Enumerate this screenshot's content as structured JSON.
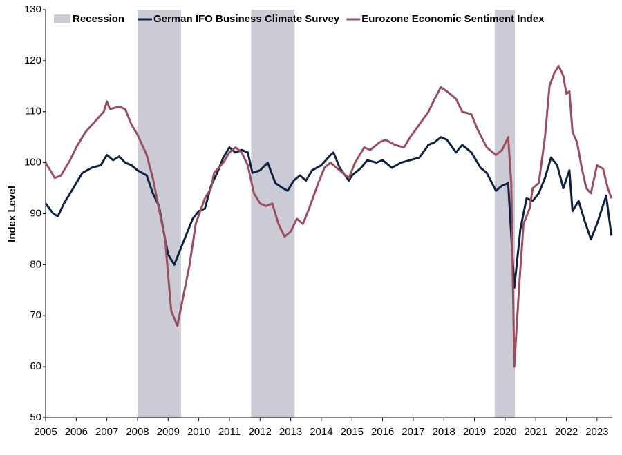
{
  "chart_data": {
    "type": "line",
    "y_label": "Index Level",
    "xlim": [
      2005,
      2023.5
    ],
    "ylim": [
      50,
      130
    ],
    "xticks": [
      2005,
      2006,
      2007,
      2008,
      2009,
      2010,
      2011,
      2012,
      2013,
      2014,
      2015,
      2016,
      2017,
      2018,
      2019,
      2020,
      2021,
      2022,
      2023
    ],
    "yticks": [
      50,
      60,
      70,
      80,
      90,
      100,
      110,
      120,
      130
    ],
    "recession": {
      "name": "Recession",
      "color": "#cbcbd5",
      "spans": [
        [
          2008.0,
          2009.42
        ],
        [
          2011.71,
          2013.13
        ],
        [
          2019.66,
          2020.32
        ]
      ]
    },
    "series": [
      {
        "name": "German IFO Business Climate Survey",
        "color": "#0d2240",
        "x": [
          2005.0,
          2005.25,
          2005.4,
          2005.6,
          2005.9,
          2006.2,
          2006.5,
          2006.8,
          2007.0,
          2007.2,
          2007.4,
          2007.6,
          2007.8,
          2008.0,
          2008.3,
          2008.5,
          2008.7,
          2008.9,
          2009.0,
          2009.2,
          2009.4,
          2009.6,
          2009.8,
          2010.0,
          2010.2,
          2010.4,
          2010.6,
          2010.8,
          2011.0,
          2011.2,
          2011.4,
          2011.6,
          2011.75,
          2012.0,
          2012.25,
          2012.5,
          2012.75,
          2012.9,
          2013.1,
          2013.3,
          2013.5,
          2013.7,
          2014.0,
          2014.3,
          2014.4,
          2014.6,
          2014.9,
          2015.0,
          2015.3,
          2015.5,
          2015.8,
          2016.0,
          2016.3,
          2016.6,
          2016.9,
          2017.2,
          2017.5,
          2017.7,
          2017.9,
          2018.1,
          2018.4,
          2018.6,
          2018.9,
          2019.2,
          2019.4,
          2019.7,
          2019.9,
          2020.1,
          2020.3,
          2020.5,
          2020.7,
          2020.9,
          2021.1,
          2021.3,
          2021.5,
          2021.7,
          2021.9,
          2022.1,
          2022.2,
          2022.4,
          2022.6,
          2022.8,
          2023.0,
          2023.3,
          2023.47
        ],
        "values": [
          92,
          90,
          89.5,
          92,
          95,
          98,
          99,
          99.5,
          101.5,
          100.5,
          101.2,
          100,
          99.5,
          98.5,
          97.5,
          94,
          91.5,
          85,
          82,
          80,
          83,
          86,
          89,
          90.5,
          91,
          95.5,
          98,
          101,
          103,
          102,
          102.5,
          102,
          98,
          98.5,
          100,
          96,
          95,
          94.5,
          96.5,
          97.5,
          96.5,
          98.5,
          99.5,
          101.5,
          102,
          99,
          96.5,
          97.5,
          99,
          100.5,
          100,
          100.5,
          99,
          100,
          100.5,
          101,
          103.5,
          104,
          105,
          104.5,
          102,
          103.5,
          102,
          99,
          98,
          94.5,
          95.5,
          96,
          75.5,
          87,
          93,
          92.5,
          94,
          97,
          101,
          99.5,
          95,
          98.5,
          90.5,
          92.5,
          88.5,
          85,
          88,
          93.5,
          85.7
        ]
      },
      {
        "name": "Eurozone Economic Sentiment Index",
        "color": "#9c4d5e",
        "x": [
          2005.0,
          2005.3,
          2005.5,
          2005.8,
          2006.0,
          2006.3,
          2006.6,
          2006.9,
          2007.0,
          2007.1,
          2007.4,
          2007.6,
          2007.8,
          2008.0,
          2008.3,
          2008.5,
          2008.7,
          2008.9,
          2009.1,
          2009.3,
          2009.5,
          2009.7,
          2009.9,
          2010.2,
          2010.4,
          2010.5,
          2010.8,
          2011.0,
          2011.2,
          2011.4,
          2011.6,
          2011.8,
          2012.0,
          2012.2,
          2012.4,
          2012.6,
          2012.8,
          2013.0,
          2013.2,
          2013.4,
          2013.6,
          2013.9,
          2014.1,
          2014.3,
          2014.6,
          2014.9,
          2015.1,
          2015.4,
          2015.6,
          2015.9,
          2016.1,
          2016.4,
          2016.7,
          2016.9,
          2017.2,
          2017.5,
          2017.7,
          2017.9,
          2018.1,
          2018.4,
          2018.6,
          2018.9,
          2019.1,
          2019.4,
          2019.7,
          2019.9,
          2020.1,
          2020.2,
          2020.3,
          2020.45,
          2020.6,
          2020.8,
          2020.9,
          2021.1,
          2021.3,
          2021.45,
          2021.6,
          2021.75,
          2021.9,
          2022.0,
          2022.1,
          2022.2,
          2022.35,
          2022.5,
          2022.65,
          2022.8,
          2023.0,
          2023.2,
          2023.35,
          2023.47
        ],
        "values": [
          100,
          97,
          97.5,
          100.5,
          103,
          106,
          108,
          110,
          112,
          110.5,
          111,
          110.5,
          107.5,
          105.5,
          101.5,
          97,
          91,
          85,
          71,
          68,
          74,
          80,
          88,
          93,
          95,
          98,
          100,
          102,
          103,
          102,
          99.5,
          94,
          92,
          91.5,
          92,
          88,
          85.5,
          86.5,
          89,
          88,
          91,
          96,
          99,
          100,
          98.5,
          97,
          100,
          103,
          102.5,
          104,
          104.5,
          103.5,
          103,
          105,
          107.5,
          110,
          112.5,
          114.8,
          114,
          112.5,
          110,
          109.5,
          106.5,
          103,
          101.5,
          102.5,
          105,
          96,
          60,
          75,
          88,
          91,
          95,
          96,
          105,
          115,
          117.5,
          119,
          117,
          113.5,
          114,
          106,
          104,
          99,
          95,
          94,
          99.5,
          98.8,
          95,
          93
        ]
      }
    ]
  }
}
